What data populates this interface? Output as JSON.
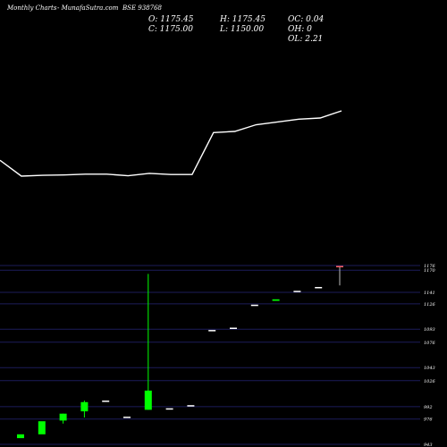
{
  "header": {
    "left": "Monthly Charts",
    "middle": "- MunafaSutra.com",
    "right": "BSE 938768"
  },
  "ohlc_labels": {
    "open": "O: 1175.45",
    "high": "H: 1175.45",
    "change": "OC: 0.04",
    "close": "C: 1175.00",
    "low": "L: 1150.00",
    "oh": "OH: 0",
    "ol": "OL: 2.21"
  },
  "colors": {
    "background": "#000000",
    "line": "#ffffff",
    "bull": "#00ff00",
    "bear": "#ff0000",
    "neutral": "#ffffff",
    "grid": "#1c1c5a"
  },
  "chart_data": [
    {
      "type": "line",
      "x": [
        1,
        2,
        3,
        4,
        5,
        6,
        7,
        8,
        9,
        10,
        11,
        12,
        13,
        14,
        15,
        16,
        17
      ],
      "values": [
        930,
        890,
        892,
        893,
        895,
        895,
        891,
        897,
        894,
        894,
        1000,
        1003,
        1020,
        1027,
        1034,
        1037,
        1055
      ]
    },
    {
      "type": "candlestick",
      "y_ticks": [
        1176,
        1170,
        1141,
        1126,
        1093,
        1076,
        1043,
        1026,
        992,
        976,
        943
      ],
      "candles": [
        {
          "open": 951,
          "high": 956,
          "low": 951,
          "close": 956
        },
        {
          "open": 956,
          "high": 973,
          "low": 956,
          "close": 973
        },
        {
          "open": 974,
          "high": 983,
          "low": 970,
          "close": 983
        },
        {
          "open": 986,
          "high": 1000,
          "low": 978,
          "close": 998
        },
        {
          "open": 1000,
          "high": 1000,
          "low": 1000,
          "close": 1000
        },
        {
          "open": 979,
          "high": 979,
          "low": 979,
          "close": 979
        },
        {
          "open": 988,
          "high": 1165,
          "low": 988,
          "close": 1013
        },
        {
          "open": 990,
          "high": 990,
          "low": 990,
          "close": 990
        },
        {
          "open": 994,
          "high": 994,
          "low": 994,
          "close": 994
        },
        {
          "open": 1092,
          "high": 1092,
          "low": 1092,
          "close": 1092
        },
        {
          "open": 1095,
          "high": 1095,
          "low": 1095,
          "close": 1095
        },
        {
          "open": 1125,
          "high": 1125,
          "low": 1125,
          "close": 1125
        },
        {
          "open": 1130,
          "high": 1132,
          "low": 1130,
          "close": 1132
        },
        {
          "open": 1143,
          "high": 1143,
          "low": 1143,
          "close": 1143
        },
        {
          "open": 1148,
          "high": 1148,
          "low": 1148,
          "close": 1148
        },
        {
          "open": 1175.45,
          "high": 1175.45,
          "low": 1150,
          "close": 1175
        }
      ]
    }
  ]
}
